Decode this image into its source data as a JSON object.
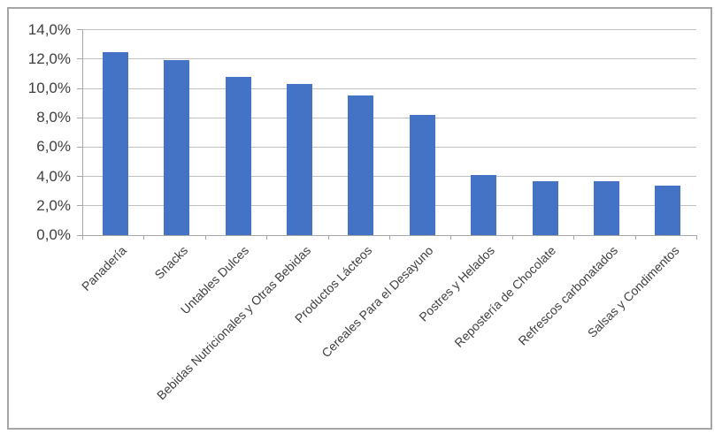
{
  "figure": {
    "background": "#FFFFFF",
    "border_color": "#A6A6A6"
  },
  "chart_data": {
    "type": "bar",
    "title": "",
    "xlabel": "",
    "ylabel": "",
    "categories": [
      "Panadería",
      "Snacks",
      "Untables Dulces",
      "Bebidas Nutricionales y Otras Bebidas",
      "Productos Lácteos",
      "Cereales Para el Desayuno",
      "Postres y Helados",
      "Repostería de Chocolate",
      "Refrescos carbonatados",
      "Salsas y Condimentos"
    ],
    "values": [
      12.5,
      11.9,
      10.8,
      10.3,
      9.5,
      8.2,
      4.1,
      3.7,
      3.7,
      3.4
    ],
    "unit": "%",
    "ylim": [
      0,
      14
    ],
    "ytick_step": 2,
    "ytick_labels": [
      "0,0%",
      "2,0%",
      "4,0%",
      "6,0%",
      "8,0%",
      "10,0%",
      "12,0%",
      "14,0%"
    ],
    "grid": "horizontal",
    "legend": "none",
    "bar_color": "#4472C4",
    "gridline_color": "#C0C0C0",
    "axis_color": "#A6A6A6",
    "text_color": "#3F3F3F"
  }
}
